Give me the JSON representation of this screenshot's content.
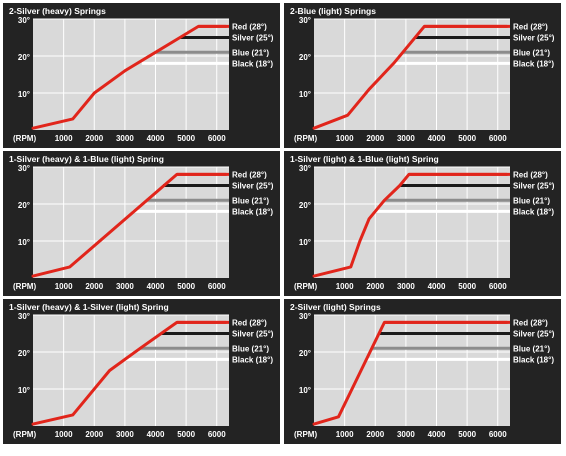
{
  "chart_data": [
    {
      "type": "line",
      "title": "2-Silver (heavy) Springs",
      "x_unit_label": "(RPM)",
      "x_ticks": [
        1000,
        2000,
        3000,
        4000,
        5000,
        6000
      ],
      "y_ticks": [
        {
          "value": 10,
          "label": "10°"
        },
        {
          "value": 20,
          "label": "20°"
        },
        {
          "value": 30,
          "label": "30°"
        }
      ],
      "xlim": [
        0,
        6400
      ],
      "ylim": [
        0,
        30
      ],
      "grid": true,
      "curve": {
        "x": [
          0,
          1300,
          2000,
          3000,
          4000,
          4800,
          5400,
          6300
        ],
        "y": [
          0.5,
          3,
          10,
          16,
          21,
          25,
          28,
          28
        ]
      },
      "reference_lines": [
        {
          "label": "Red (28°)",
          "value": 28,
          "color": "#e1251b",
          "start_x": 5400
        },
        {
          "label": "Silver (25°)",
          "value": 25,
          "color": "#1a1a1a",
          "start_x": 4800
        },
        {
          "label": "Blue (21°)",
          "value": 21,
          "color": "#8c8c8c",
          "start_x": 4000
        },
        {
          "label": "Black (18°)",
          "value": 18,
          "color": "#ffffff",
          "start_x": 3550
        }
      ]
    },
    {
      "type": "line",
      "title": "2-Blue (light) Springs",
      "x_unit_label": "(RPM)",
      "x_ticks": [
        1000,
        2000,
        3000,
        4000,
        5000,
        6000
      ],
      "y_ticks": [
        {
          "value": 10,
          "label": "10°"
        },
        {
          "value": 20,
          "label": "20°"
        },
        {
          "value": 30,
          "label": "30°"
        }
      ],
      "xlim": [
        0,
        6400
      ],
      "ylim": [
        0,
        30
      ],
      "grid": true,
      "curve": {
        "x": [
          0,
          1100,
          1800,
          2600,
          3600,
          6300
        ],
        "y": [
          0.5,
          4,
          11,
          18,
          28,
          28
        ]
      },
      "reference_lines": [
        {
          "label": "Red (28°)",
          "value": 28,
          "color": "#e1251b",
          "start_x": 3600
        },
        {
          "label": "Silver (25°)",
          "value": 25,
          "color": "#1a1a1a",
          "start_x": 3300
        },
        {
          "label": "Blue (21°)",
          "value": 21,
          "color": "#8c8c8c",
          "start_x": 2900
        },
        {
          "label": "Black (18°)",
          "value": 18,
          "color": "#ffffff",
          "start_x": 2600
        }
      ]
    },
    {
      "type": "line",
      "title": "1-Silver (heavy) & 1-Blue (light) Spring",
      "x_unit_label": "(RPM)",
      "x_ticks": [
        1000,
        2000,
        3000,
        4000,
        5000,
        6000
      ],
      "y_ticks": [
        {
          "value": 10,
          "label": "10°"
        },
        {
          "value": 20,
          "label": "20°"
        },
        {
          "value": 30,
          "label": "30°"
        }
      ],
      "xlim": [
        0,
        6400
      ],
      "ylim": [
        0,
        30
      ],
      "grid": true,
      "curve": {
        "x": [
          0,
          1200,
          4700,
          6300
        ],
        "y": [
          0.5,
          3,
          28,
          28
        ]
      },
      "reference_lines": [
        {
          "label": "Red (28°)",
          "value": 28,
          "color": "#e1251b",
          "start_x": 4700
        },
        {
          "label": "Silver (25°)",
          "value": 25,
          "color": "#1a1a1a",
          "start_x": 4250
        },
        {
          "label": "Blue (21°)",
          "value": 21,
          "color": "#8c8c8c",
          "start_x": 3700
        },
        {
          "label": "Black (18°)",
          "value": 18,
          "color": "#ffffff",
          "start_x": 3250
        }
      ]
    },
    {
      "type": "line",
      "title": "1-Silver (light) & 1-Blue (light) Spring",
      "x_unit_label": "(RPM)",
      "x_ticks": [
        1000,
        2000,
        3000,
        4000,
        5000,
        6000
      ],
      "y_ticks": [
        {
          "value": 10,
          "label": "10°"
        },
        {
          "value": 20,
          "label": "20°"
        },
        {
          "value": 30,
          "label": "30°"
        }
      ],
      "xlim": [
        0,
        6400
      ],
      "ylim": [
        0,
        30
      ],
      "grid": true,
      "curve": {
        "x": [
          0,
          1200,
          1500,
          1800,
          2300,
          2800,
          3100,
          6300
        ],
        "y": [
          0.5,
          3,
          10,
          16,
          21,
          25,
          28,
          28
        ]
      },
      "reference_lines": [
        {
          "label": "Red (28°)",
          "value": 28,
          "color": "#e1251b",
          "start_x": 3100
        },
        {
          "label": "Silver (25°)",
          "value": 25,
          "color": "#1a1a1a",
          "start_x": 2800
        },
        {
          "label": "Blue (21°)",
          "value": 21,
          "color": "#8c8c8c",
          "start_x": 2300
        },
        {
          "label": "Black (18°)",
          "value": 18,
          "color": "#ffffff",
          "start_x": 1950
        }
      ]
    },
    {
      "type": "line",
      "title": "1-Silver (heavy) & 1-Silver (light) Spring",
      "x_unit_label": "(RPM)",
      "x_ticks": [
        1000,
        2000,
        3000,
        4000,
        5000,
        6000
      ],
      "y_ticks": [
        {
          "value": 10,
          "label": "10°"
        },
        {
          "value": 20,
          "label": "20°"
        },
        {
          "value": 30,
          "label": "30°"
        }
      ],
      "xlim": [
        0,
        6400
      ],
      "ylim": [
        0,
        30
      ],
      "grid": true,
      "curve": {
        "x": [
          0,
          1300,
          2500,
          3500,
          4700,
          6300
        ],
        "y": [
          0.5,
          3,
          15,
          21,
          28,
          28
        ]
      },
      "reference_lines": [
        {
          "label": "Red (28°)",
          "value": 28,
          "color": "#e1251b",
          "start_x": 4700
        },
        {
          "label": "Silver (25°)",
          "value": 25,
          "color": "#1a1a1a",
          "start_x": 4200
        },
        {
          "label": "Blue (21°)",
          "value": 21,
          "color": "#8c8c8c",
          "start_x": 3500
        },
        {
          "label": "Black (18°)",
          "value": 18,
          "color": "#ffffff",
          "start_x": 3000
        }
      ]
    },
    {
      "type": "line",
      "title": "2-Silver (light) Springs",
      "x_unit_label": "(RPM)",
      "x_ticks": [
        1000,
        2000,
        3000,
        4000,
        5000,
        6000
      ],
      "y_ticks": [
        {
          "value": 10,
          "label": "10°"
        },
        {
          "value": 20,
          "label": "20°"
        },
        {
          "value": 30,
          "label": "30°"
        }
      ],
      "xlim": [
        0,
        6400
      ],
      "ylim": [
        0,
        30
      ],
      "grid": true,
      "curve": {
        "x": [
          0,
          800,
          2300,
          6300
        ],
        "y": [
          0.5,
          2.5,
          28,
          28
        ]
      },
      "reference_lines": [
        {
          "label": "Red (28°)",
          "value": 28,
          "color": "#e1251b",
          "start_x": 2300
        },
        {
          "label": "Silver (25°)",
          "value": 25,
          "color": "#1a1a1a",
          "start_x": 2150
        },
        {
          "label": "Blue (21°)",
          "value": 21,
          "color": "#8c8c8c",
          "start_x": 1900
        },
        {
          "label": "Black (18°)",
          "value": 18,
          "color": "#ffffff",
          "start_x": 1700
        }
      ]
    }
  ],
  "colors": {
    "panel_background": "#232323",
    "plot_background": "#d9d9d9",
    "grid": "#ffffff",
    "curve": "#e1251b",
    "text": "#ffffff"
  }
}
